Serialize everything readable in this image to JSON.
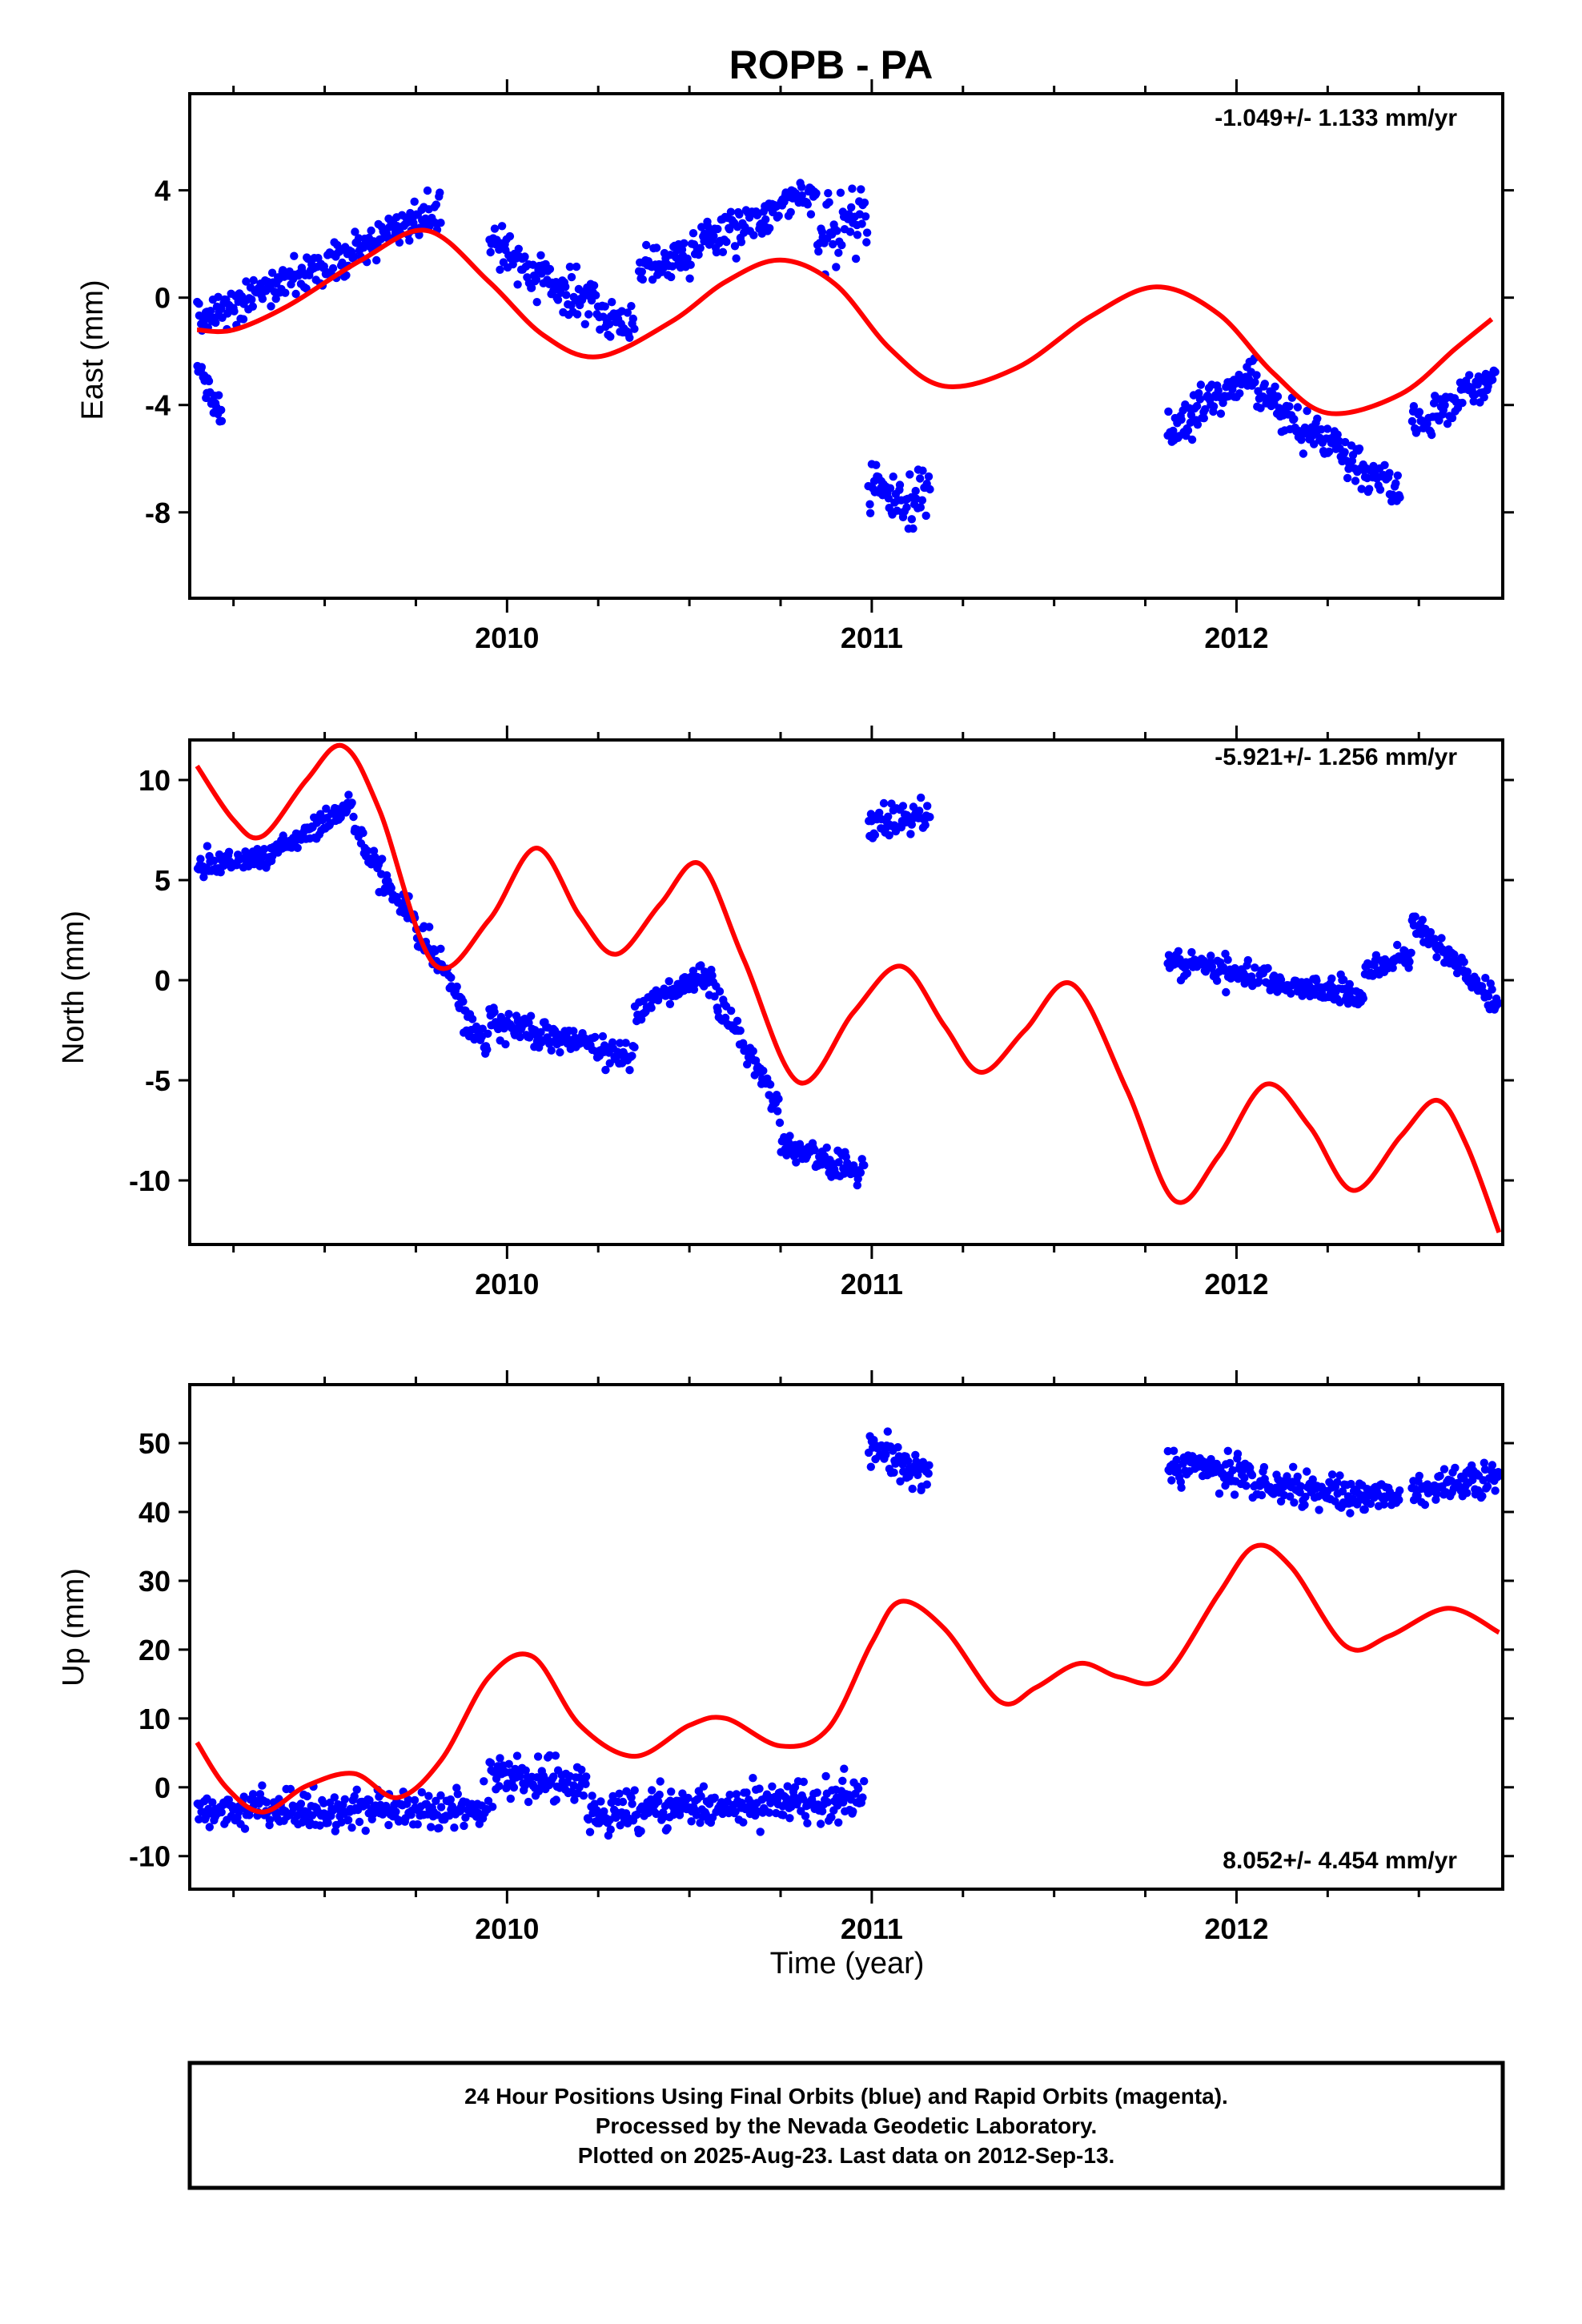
{
  "title": "ROPB - PA",
  "footer": {
    "line1": "24 Hour Positions Using Final Orbits (blue) and Rapid Orbits (magenta).",
    "line2": "Processed by the Nevada Geodetic Laboratory.",
    "line3": "Plotted on 2025-Aug-23. Last data on 2012-Sep-13."
  },
  "colors": {
    "data": "#0000ff",
    "model": "#ff0000",
    "axis": "#000000"
  },
  "chart_data": [
    {
      "type": "scatter",
      "ylabel": "East (mm)",
      "rate_text": "-1.049+/- 1.133 mm/yr",
      "rate_position": "top-right",
      "xlim": [
        2009.13,
        2012.73
      ],
      "ylim": [
        -11.2,
        7.6
      ],
      "x_ticks": [
        2010,
        2011,
        2012
      ],
      "y_ticks": [
        -8,
        -4,
        0,
        4
      ],
      "segments": [
        {
          "x": [
            2009.15,
            2009.82
          ],
          "y": [
            -0.8,
            3.2
          ],
          "noise": 1.0
        },
        {
          "x": [
            2009.15,
            2009.22
          ],
          "y": [
            -2.5,
            -4.5
          ],
          "noise": 0.8
        },
        {
          "x": [
            2009.95,
            2010.35
          ],
          "y": [
            2.0,
            -1.2
          ],
          "noise": 1.1
        },
        {
          "x": [
            2010.36,
            2010.85
          ],
          "y": [
            1.0,
            4.0
          ],
          "noise": 1.0
        },
        {
          "x": [
            2010.85,
            2010.99
          ],
          "y": [
            2.5,
            3.0
          ],
          "noise": 1.8
        },
        {
          "x": [
            2010.99,
            2011.16
          ],
          "y": [
            -7.2,
            -7.4
          ],
          "noise": 1.4
        },
        {
          "x": [
            2011.81,
            2012.05
          ],
          "y": [
            -5.0,
            -2.8
          ],
          "noise": 1.0
        },
        {
          "x": [
            2012.05,
            2012.45
          ],
          "y": [
            -3.5,
            -7.4
          ],
          "noise": 1.0
        },
        {
          "x": [
            2012.48,
            2012.71
          ],
          "y": [
            -4.8,
            -2.8
          ],
          "noise": 0.9
        }
      ],
      "model": {
        "x": [
          2009.15,
          2009.25,
          2009.4,
          2009.6,
          2009.78,
          2009.95,
          2010.1,
          2010.25,
          2010.45,
          2010.6,
          2010.75,
          2010.9,
          2011.05,
          2011.2,
          2011.4,
          2011.6,
          2011.78,
          2011.95,
          2012.1,
          2012.25,
          2012.45,
          2012.6,
          2012.7
        ],
        "y": [
          -1.2,
          -1.2,
          -0.3,
          1.4,
          2.5,
          0.6,
          -1.4,
          -2.2,
          -0.9,
          0.6,
          1.4,
          0.5,
          -1.9,
          -3.3,
          -2.6,
          -0.7,
          0.4,
          -0.6,
          -2.8,
          -4.3,
          -3.6,
          -1.9,
          -0.8
        ]
      }
    },
    {
      "type": "scatter",
      "ylabel": "North (mm)",
      "rate_text": "-5.921+/- 1.256 mm/yr",
      "rate_position": "top-right",
      "xlim": [
        2009.13,
        2012.73
      ],
      "ylim": [
        -13.2,
        12.0
      ],
      "x_ticks": [
        2010,
        2011,
        2012
      ],
      "y_ticks": [
        -10,
        -5,
        0,
        5,
        10
      ],
      "segments": [
        {
          "x": [
            2009.15,
            2009.35
          ],
          "y": [
            5.8,
            6.0
          ],
          "noise": 0.8
        },
        {
          "x": [
            2009.35,
            2009.58
          ],
          "y": [
            6.3,
            8.8
          ],
          "noise": 0.8
        },
        {
          "x": [
            2009.58,
            2009.88
          ],
          "y": [
            7.5,
            -1.0
          ],
          "noise": 1.0
        },
        {
          "x": [
            2009.88,
            2009.95
          ],
          "y": [
            -2.0,
            -3.3
          ],
          "noise": 1.1
        },
        {
          "x": [
            2009.95,
            2010.35
          ],
          "y": [
            -2.0,
            -3.8
          ],
          "noise": 1.0
        },
        {
          "x": [
            2010.35,
            2010.55
          ],
          "y": [
            -1.5,
            0.3
          ],
          "noise": 0.8
        },
        {
          "x": [
            2010.55,
            2010.75
          ],
          "y": [
            0.0,
            -6.5
          ],
          "noise": 1.0
        },
        {
          "x": [
            2010.75,
            2010.98
          ],
          "y": [
            -8.2,
            -9.6
          ],
          "noise": 1.0
        },
        {
          "x": [
            2010.99,
            2011.16
          ],
          "y": [
            7.8,
            8.2
          ],
          "noise": 1.1
        },
        {
          "x": [
            2011.81,
            2012.35
          ],
          "y": [
            1.0,
            -0.8
          ],
          "noise": 0.9
        },
        {
          "x": [
            2012.35,
            2012.48
          ],
          "y": [
            0.2,
            1.2
          ],
          "noise": 0.8
        },
        {
          "x": [
            2012.48,
            2012.72
          ],
          "y": [
            3.0,
            -1.2
          ],
          "noise": 0.8
        }
      ],
      "model": {
        "x": [
          2009.15,
          2009.25,
          2009.33,
          2009.45,
          2009.55,
          2009.65,
          2009.8,
          2009.95,
          2010.08,
          2010.2,
          2010.3,
          2010.42,
          2010.53,
          2010.65,
          2010.8,
          2010.95,
          2011.08,
          2011.2,
          2011.3,
          2011.42,
          2011.55,
          2011.7,
          2011.83,
          2011.95,
          2012.08,
          2012.2,
          2012.32,
          2012.45,
          2012.55,
          2012.63,
          2012.72
        ],
        "y": [
          10.7,
          8.0,
          7.2,
          10.0,
          11.7,
          8.5,
          0.8,
          3.0,
          6.6,
          3.2,
          1.3,
          3.8,
          5.8,
          1.0,
          -5.1,
          -1.6,
          0.7,
          -2.3,
          -4.6,
          -2.5,
          -0.2,
          -5.5,
          -11.0,
          -8.8,
          -5.2,
          -7.3,
          -10.5,
          -7.8,
          -6.0,
          -8.2,
          -12.6
        ]
      }
    },
    {
      "type": "scatter",
      "ylabel": "Up (mm)",
      "xlabel": "Time (year)",
      "rate_text": "8.052+/- 4.454 mm/yr",
      "rate_position": "bottom-right",
      "xlim": [
        2009.13,
        2012.73
      ],
      "ylim": [
        -14.8,
        58.5
      ],
      "x_ticks": [
        2010,
        2011,
        2012
      ],
      "y_ticks": [
        -10,
        0,
        10,
        20,
        30,
        40,
        50
      ],
      "segments": [
        {
          "x": [
            2009.15,
            2009.95
          ],
          "y": [
            -3.5,
            -3.0
          ],
          "noise": 3.5
        },
        {
          "x": [
            2009.95,
            2010.22
          ],
          "y": [
            2.0,
            0.0
          ],
          "noise": 4.5
        },
        {
          "x": [
            2010.22,
            2010.98
          ],
          "y": [
            -4.0,
            -1.5
          ],
          "noise": 4.0
        },
        {
          "x": [
            2010.99,
            2011.16
          ],
          "y": [
            50.0,
            45.0
          ],
          "noise": 3.5
        },
        {
          "x": [
            2011.81,
            2012.05
          ],
          "y": [
            46.5,
            45.5
          ],
          "noise": 3.5
        },
        {
          "x": [
            2012.05,
            2012.45
          ],
          "y": [
            44.0,
            42.0
          ],
          "noise": 3.5
        },
        {
          "x": [
            2012.48,
            2012.72
          ],
          "y": [
            43.0,
            45.0
          ],
          "noise": 3.5
        }
      ],
      "model": {
        "x": [
          2009.15,
          2009.23,
          2009.33,
          2009.45,
          2009.58,
          2009.7,
          2009.82,
          2009.95,
          2010.07,
          2010.2,
          2010.35,
          2010.5,
          2010.6,
          2010.75,
          2010.88,
          2011.0,
          2011.08,
          2011.2,
          2011.35,
          2011.45,
          2011.57,
          2011.68,
          2011.8,
          2011.95,
          2012.05,
          2012.15,
          2012.3,
          2012.42,
          2012.58,
          2012.72
        ],
        "y": [
          6.5,
          0.0,
          -3.6,
          0.2,
          2.0,
          -1.5,
          4.0,
          16.0,
          19.0,
          9.0,
          4.5,
          9.0,
          10.0,
          6.0,
          8.5,
          21.0,
          27.0,
          23.0,
          12.5,
          14.5,
          18.0,
          16.0,
          16.0,
          28.0,
          35.0,
          32.0,
          20.5,
          22.0,
          26.0,
          22.5
        ]
      }
    }
  ]
}
